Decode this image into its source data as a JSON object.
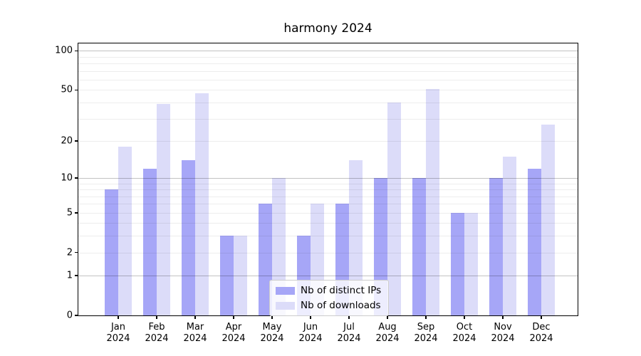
{
  "title": "harmony 2024",
  "chart_data": {
    "type": "bar",
    "title": "harmony 2024",
    "xlabel": "",
    "ylabel": "",
    "scale": "log1p",
    "categories": [
      "Jan",
      "Feb",
      "Mar",
      "Apr",
      "May",
      "Jun",
      "Jul",
      "Aug",
      "Sep",
      "Oct",
      "Nov",
      "Dec"
    ],
    "x_year_line": "2024",
    "series": [
      {
        "name": "Nb of distinct IPs",
        "color": "#a6a6f7",
        "values": [
          8,
          12,
          14,
          3,
          6,
          3,
          6,
          10,
          10,
          5,
          10,
          12
        ]
      },
      {
        "name": "Nb of downloads",
        "color": "#dcdcf9",
        "values": [
          18,
          39,
          47,
          3,
          10,
          6,
          14,
          40,
          51,
          5,
          15,
          27
        ]
      }
    ],
    "ylim": [
      0,
      114
    ],
    "yticks": [
      100,
      50,
      20,
      10,
      5,
      2,
      1,
      0
    ],
    "major_gridlines": [
      1,
      10,
      100
    ],
    "minor_gridlines": [
      2,
      3,
      4,
      5,
      6,
      7,
      8,
      9,
      20,
      30,
      40,
      50,
      60,
      70,
      80,
      90
    ],
    "grid": true,
    "legend_position": "lower center"
  },
  "colors": {
    "series1": "#a6a6f7",
    "series2": "#dcdcf9",
    "spine": "#000000",
    "background": "#ffffff"
  }
}
